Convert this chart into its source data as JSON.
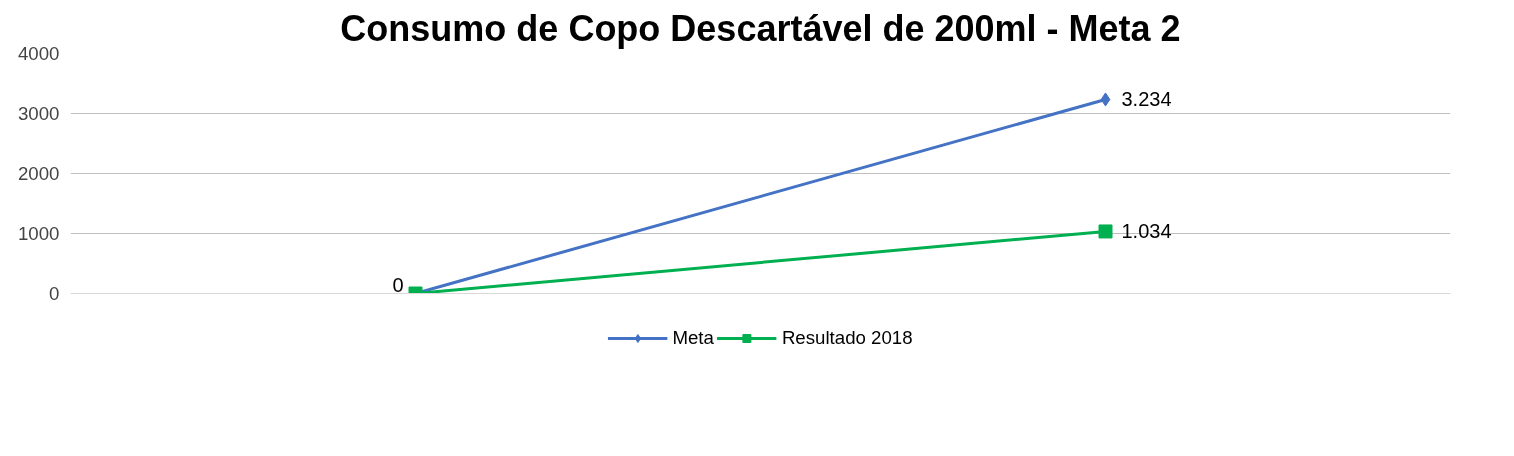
{
  "chart_data": {
    "type": "line",
    "title": "Consumo de Copo Descartável de 200ml - Meta 2",
    "categories": [
      null,
      null
    ],
    "series": [
      {
        "name": "Meta",
        "color": "#4472c4",
        "marker": "diamond",
        "values": [
          0,
          3234
        ],
        "value_labels": [
          null,
          "3.234"
        ]
      },
      {
        "name": "Resultado 2018",
        "color": "#00b050",
        "marker": "square",
        "values": [
          0,
          1034
        ],
        "value_labels": [
          "0",
          "1.034"
        ]
      }
    ],
    "ylim": [
      0,
      4000
    ],
    "yticks": [
      0,
      1000,
      2000,
      3000,
      4000
    ],
    "grid": "y",
    "legend": "bottom",
    "tick_labels": "y"
  }
}
